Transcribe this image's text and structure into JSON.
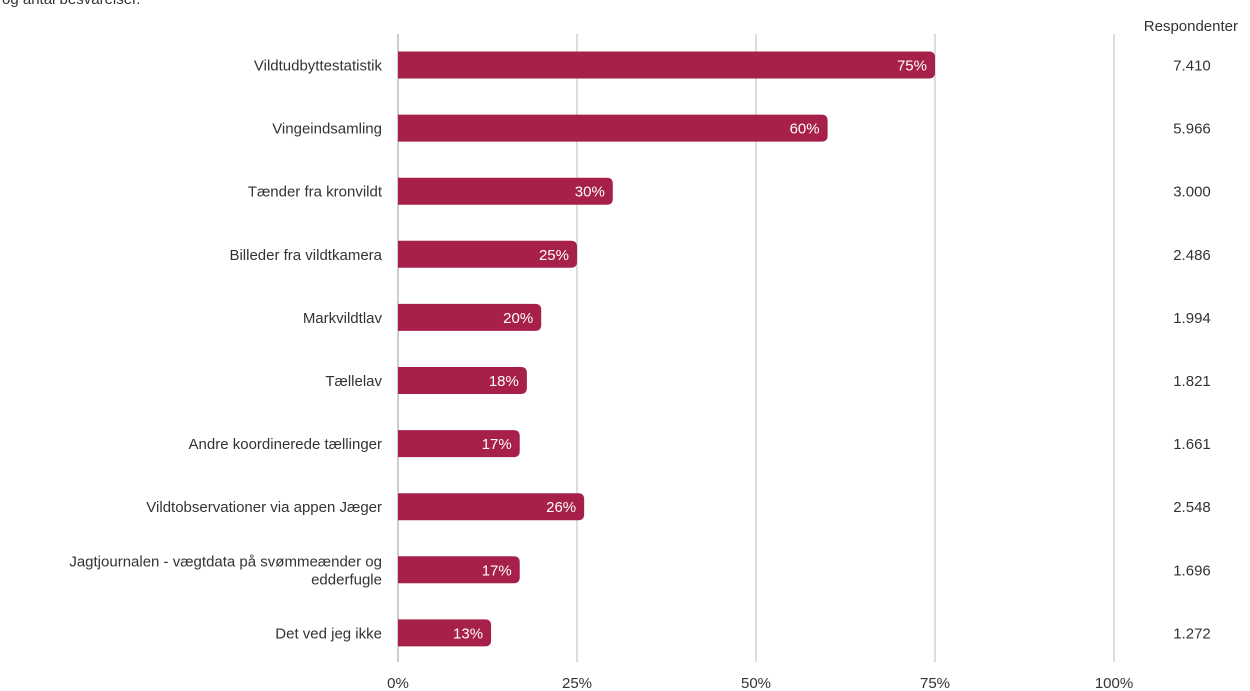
{
  "header": {
    "clipped_text": "og antal besvarelser.",
    "respondents_label": "Respondenter"
  },
  "colors": {
    "bar": "#A6204A",
    "bar_label": "#ffffff",
    "grid": "#BDBDBD",
    "text": "#333333"
  },
  "chart_data": {
    "type": "bar",
    "orientation": "horizontal",
    "categories": [
      "Vildtudbyttestatistik",
      "Vingeindsamling",
      "Tænder fra kronvildt",
      "Billeder fra vildtkamera",
      "Markvildtlav",
      "Tællelav",
      "Andre koordinerede tællinger",
      "Vildtobservationer via appen Jæger",
      "Jagtjournalen - vægtdata på svømmeænder og edderfugle",
      "Det ved jeg ikke"
    ],
    "category_lines": [
      [
        "Vildtudbyttestatistik"
      ],
      [
        "Vingeindsamling"
      ],
      [
        "Tænder fra kronvildt"
      ],
      [
        "Billeder fra vildtkamera"
      ],
      [
        "Markvildtlav"
      ],
      [
        "Tællelav"
      ],
      [
        "Andre koordinerede tællinger"
      ],
      [
        "Vildtobservationer via appen Jæger"
      ],
      [
        "Jagtjournalen - vægtdata på svømmeænder og",
        "edderfugle"
      ],
      [
        "Det ved jeg ikke"
      ]
    ],
    "values": [
      75,
      60,
      30,
      25,
      20,
      18,
      17,
      26,
      17,
      13
    ],
    "value_labels": [
      "75%",
      "60%",
      "30%",
      "25%",
      "20%",
      "18%",
      "17%",
      "26%",
      "17%",
      "13%"
    ],
    "respondents": [
      "7.410",
      "5.966",
      "3.000",
      "2.486",
      "1.994",
      "1.821",
      "1.661",
      "2.548",
      "1.696",
      "1.272"
    ],
    "xlim": [
      0,
      100
    ],
    "x_ticks": [
      0,
      25,
      50,
      75,
      100
    ],
    "x_tick_labels": [
      "0%",
      "25%",
      "50%",
      "75%",
      "100%"
    ],
    "grid": true,
    "legend": "none"
  }
}
